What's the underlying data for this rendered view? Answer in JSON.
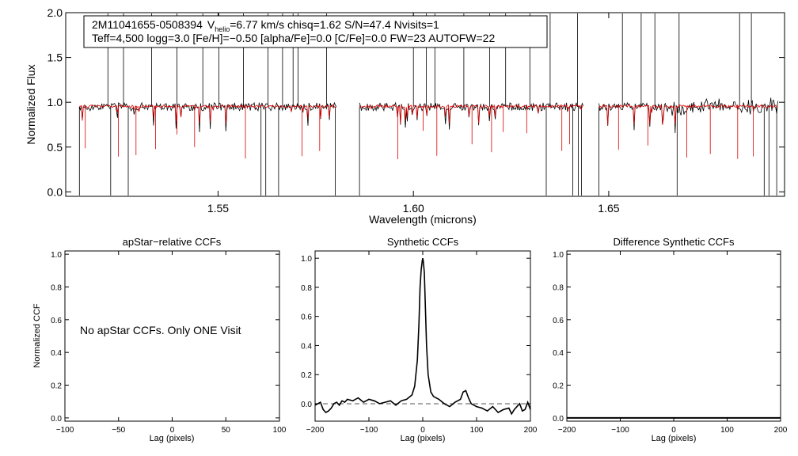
{
  "chart_data": [
    {
      "type": "line",
      "panel": "spectrum",
      "info_line1": {
        "star": "2M11041655-0508394",
        "v_prefix": "V",
        "v_sub": "helio",
        "v_suffix": "=6.77 km/s  chisq=1.62  S/N=47.4  Nvisits=1"
      },
      "info_line2": "Teff=4,500 logg=3.0 [Fe/H]=−0.50 [alpha/Fe]=0.0 [C/Fe]=0.0 FW=23 AUTOFW=22",
      "xlabel": "Wavelength (microns)",
      "ylabel": "Normalized Flux",
      "xlim": [
        1.511,
        1.695
      ],
      "ylim": [
        -0.05,
        2.0
      ],
      "x_ticks": [
        {
          "v": 1.55,
          "label": "1.55"
        },
        {
          "v": 1.6,
          "label": "1.60"
        },
        {
          "v": 1.65,
          "label": "1.65"
        }
      ],
      "y_ticks": [
        {
          "v": 0.0,
          "label": "0.0"
        },
        {
          "v": 0.5,
          "label": "0.5"
        },
        {
          "v": 1.0,
          "label": "1.0"
        },
        {
          "v": 1.5,
          "label": "1.5"
        },
        {
          "v": 2.0,
          "label": "2.0"
        }
      ],
      "chips": [
        [
          1.5145,
          1.5805
        ],
        [
          1.5862,
          1.6435
        ],
        [
          1.6475,
          1.6935
        ]
      ],
      "series": [
        {
          "name": "observed",
          "color": "#000000",
          "continuum": 0.95
        },
        {
          "name": "synthetic",
          "color": "#dd0000",
          "continuum": 0.955
        }
      ],
      "spikes_up": [
        1.5218,
        1.5258,
        1.533,
        1.5395,
        1.5461,
        1.5502,
        1.5565,
        1.5628,
        1.5665,
        1.5692,
        1.5705,
        1.5778,
        1.6,
        1.6033,
        1.6055,
        1.6129,
        1.6195,
        1.6236,
        1.6298,
        1.635,
        1.642,
        1.6535,
        1.6583,
        1.6618,
        1.668,
        1.6835,
        1.6865
      ],
      "spikes_down": [
        1.5145,
        1.5225,
        1.527,
        1.561,
        1.5622,
        1.5655,
        1.58,
        1.5862,
        1.634,
        1.6408,
        1.6422,
        1.643,
        1.6475,
        1.6675,
        1.6898,
        1.691,
        1.693
      ],
      "red_lines": [
        1.516,
        1.5245,
        1.529,
        1.534,
        1.5395,
        1.544,
        1.557,
        1.5715,
        1.576,
        1.596,
        1.6025,
        1.606,
        1.615,
        1.62,
        1.623,
        1.629,
        1.638,
        1.64,
        1.6525,
        1.66,
        1.67,
        1.676,
        1.683,
        1.687
      ]
    },
    {
      "type": "line",
      "panel": "apstar",
      "title": "apStar−relative CCFs",
      "ylabel": "Normalized CCF",
      "xlabel": "Lag (pixels)",
      "xlim": [
        -100,
        100
      ],
      "ylim": [
        -0.02,
        1.02
      ],
      "x_ticks": [
        {
          "v": -100,
          "label": "−100"
        },
        {
          "v": -50,
          "label": "−50"
        },
        {
          "v": 0,
          "label": "0"
        },
        {
          "v": 50,
          "label": "50"
        },
        {
          "v": 100,
          "label": "100"
        }
      ],
      "y_ticks": [
        {
          "v": 0.0,
          "label": "0.0"
        },
        {
          "v": 0.2,
          "label": "0.2"
        },
        {
          "v": 0.4,
          "label": "0.4"
        },
        {
          "v": 0.6,
          "label": "0.6"
        },
        {
          "v": 0.8,
          "label": "0.8"
        },
        {
          "v": 1.0,
          "label": "1.0"
        }
      ],
      "message": "No apStar CCFs.  Only ONE Visit"
    },
    {
      "type": "line",
      "panel": "synthetic",
      "title": "Synthetic CCFs",
      "xlabel": "Lag (pixels)",
      "xlim": [
        -200,
        200
      ],
      "ylim": [
        -0.12,
        1.05
      ],
      "x_ticks": [
        {
          "v": -200,
          "label": "−200"
        },
        {
          "v": -100,
          "label": "−100"
        },
        {
          "v": 0,
          "label": "0"
        },
        {
          "v": 100,
          "label": "100"
        },
        {
          "v": 200,
          "label": "200"
        }
      ],
      "y_ticks": [
        {
          "v": 0.0,
          "label": "0.0"
        },
        {
          "v": 0.2,
          "label": "0.2"
        },
        {
          "v": 0.4,
          "label": "0.4"
        },
        {
          "v": 0.6,
          "label": "0.6"
        },
        {
          "v": 0.8,
          "label": "0.8"
        },
        {
          "v": 1.0,
          "label": "1.0"
        }
      ],
      "ccf": {
        "x": [
          -200,
          -190,
          -185,
          -180,
          -175,
          -170,
          -165,
          -160,
          -155,
          -150,
          -145,
          -140,
          -130,
          -120,
          -110,
          -100,
          -90,
          -80,
          -70,
          -60,
          -50,
          -40,
          -30,
          -20,
          -15,
          -10,
          -7,
          -5,
          -3,
          -1,
          0,
          1,
          3,
          5,
          7,
          10,
          15,
          20,
          30,
          40,
          50,
          60,
          70,
          75,
          80,
          85,
          90,
          95,
          100,
          110,
          120,
          130,
          140,
          150,
          160,
          165,
          170,
          175,
          180,
          185,
          190,
          195,
          200
        ],
        "y": [
          -0.01,
          0.01,
          -0.04,
          -0.06,
          -0.05,
          -0.03,
          0.0,
          0.01,
          -0.01,
          0.02,
          0.01,
          0.03,
          0.02,
          0.04,
          0.01,
          0.03,
          0.02,
          0.0,
          0.01,
          0.02,
          -0.01,
          0.02,
          0.03,
          0.06,
          0.12,
          0.3,
          0.55,
          0.8,
          0.92,
          0.98,
          1.0,
          0.98,
          0.9,
          0.65,
          0.4,
          0.2,
          0.08,
          0.05,
          0.03,
          0.0,
          -0.02,
          0.01,
          0.03,
          0.08,
          0.09,
          0.04,
          0.0,
          -0.01,
          -0.02,
          -0.03,
          -0.05,
          -0.02,
          -0.06,
          -0.04,
          -0.03,
          -0.07,
          -0.04,
          -0.02,
          0.0,
          -0.05,
          -0.04,
          0.01,
          -0.04
        ]
      },
      "baseline": 0.0
    },
    {
      "type": "line",
      "panel": "difference",
      "title": "Difference Synthetic CCFs",
      "xlabel": "Lag (pixels)",
      "xlim": [
        -200,
        200
      ],
      "ylim": [
        -0.02,
        1.02
      ],
      "x_ticks": [
        {
          "v": -200,
          "label": "−200"
        },
        {
          "v": -100,
          "label": "−100"
        },
        {
          "v": 0,
          "label": "0"
        },
        {
          "v": 100,
          "label": "100"
        },
        {
          "v": 200,
          "label": "200"
        }
      ],
      "y_ticks": [
        {
          "v": 0.0,
          "label": "0.0"
        },
        {
          "v": 0.2,
          "label": "0.2"
        },
        {
          "v": 0.4,
          "label": "0.4"
        },
        {
          "v": 0.6,
          "label": "0.6"
        },
        {
          "v": 0.8,
          "label": "0.8"
        },
        {
          "v": 1.0,
          "label": "1.0"
        }
      ],
      "baseline": 0.0
    }
  ]
}
